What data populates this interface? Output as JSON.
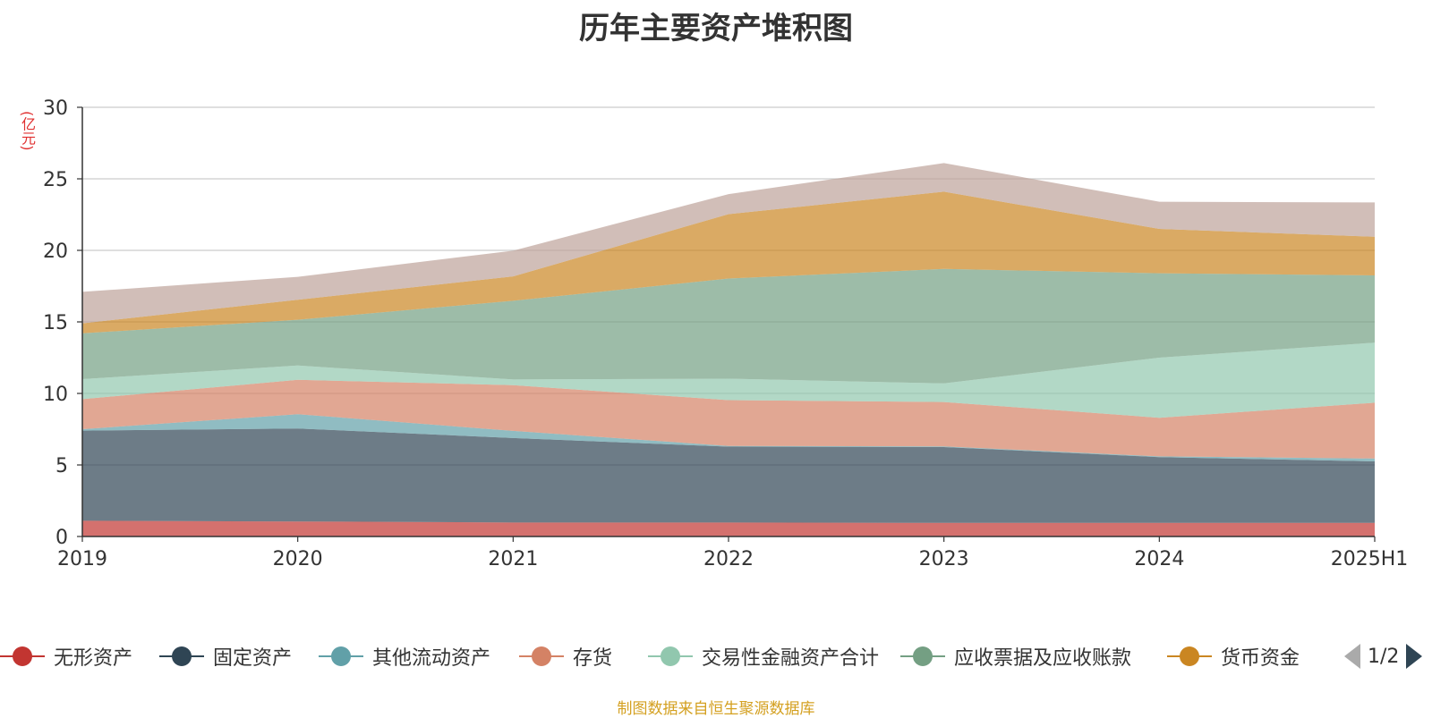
{
  "title": "历年主要资产堆积图",
  "unit_label": "(亿元)",
  "source": "制图数据来自恒生聚源数据库",
  "pager": {
    "text": "1/2",
    "prev_icon": "triangle-left-icon",
    "next_icon": "triangle-right-icon"
  },
  "chart_data": {
    "type": "area",
    "stacked": true,
    "title": "历年主要资产堆积图",
    "ylabel": "(亿元)",
    "categories": [
      "2019",
      "2020",
      "2021",
      "2022",
      "2023",
      "2024",
      "2025H1"
    ],
    "ylim": [
      0,
      30
    ],
    "yticks": [
      0,
      5,
      10,
      15,
      20,
      25,
      30
    ],
    "grid": true,
    "legend_position": "bottom",
    "series": [
      {
        "name": "无形资产",
        "color": "#c23531",
        "legend_color": "#c23531",
        "values": [
          1.1,
          1.05,
          0.98,
          0.98,
          0.95,
          0.95,
          0.95
        ]
      },
      {
        "name": "固定资产",
        "color": "#2f4554",
        "legend_color": "#2f4554",
        "values": [
          6.3,
          6.5,
          5.9,
          5.3,
          5.3,
          4.6,
          4.3
        ]
      },
      {
        "name": "其他流动资产",
        "color": "#61a0a8",
        "legend_color": "#61a0a8",
        "values": [
          0.1,
          1.0,
          0.5,
          0.05,
          0.05,
          0.05,
          0.2
        ]
      },
      {
        "name": "存货",
        "color": "#d48265",
        "legend_color": "#d48265",
        "values": [
          2.1,
          2.4,
          3.2,
          3.2,
          3.1,
          2.7,
          3.9
        ]
      },
      {
        "name": "交易性金融资产合计",
        "color": "#91c7ae",
        "legend_color": "#91c7ae",
        "values": [
          1.4,
          1.0,
          0.4,
          1.5,
          1.3,
          4.2,
          4.2
        ]
      },
      {
        "name": "应收票据及应收账款",
        "color": "#749f83",
        "legend_color": "#749f83",
        "values": [
          3.2,
          3.2,
          5.5,
          7.0,
          8.0,
          5.9,
          4.7
        ]
      },
      {
        "name": "货币资金",
        "color": "#ca8622",
        "legend_color": "#ca8622",
        "values": [
          0.7,
          1.4,
          1.7,
          4.5,
          5.4,
          3.1,
          2.7
        ]
      },
      {
        "name": "",
        "color": "#bda29a",
        "legend_color": "#bda29a",
        "values": [
          2.2,
          1.6,
          1.8,
          1.4,
          2.0,
          1.9,
          2.4
        ]
      }
    ]
  }
}
